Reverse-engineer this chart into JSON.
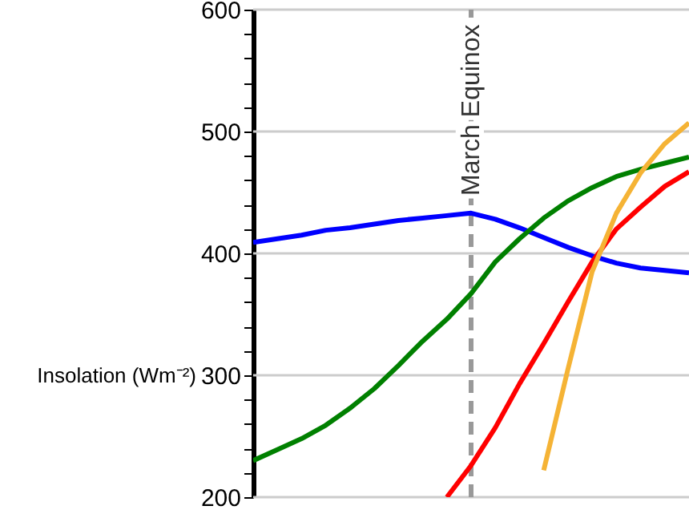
{
  "chart_data": {
    "type": "line",
    "ylabel": "Insolation (Wm⁻²)",
    "categories": [
      null,
      null,
      null,
      null,
      null,
      null,
      null,
      null,
      null,
      null,
      null,
      null,
      null,
      null,
      null,
      null,
      null,
      null,
      null
    ],
    "ylim": [
      200,
      600
    ],
    "yticks": [
      200,
      {
        "value": 220,
        "label": null
      },
      {
        "value": 240,
        "label": null
      },
      {
        "value": 260,
        "label": null
      },
      {
        "value": 280,
        "label": null
      },
      300,
      {
        "value": 320,
        "label": null
      },
      {
        "value": 340,
        "label": null
      },
      {
        "value": 360,
        "label": null
      },
      {
        "value": 380,
        "label": null
      },
      400,
      {
        "value": 420,
        "label": null
      },
      {
        "value": 440,
        "label": null
      },
      {
        "value": 460,
        "label": null
      },
      {
        "value": 480,
        "label": null
      },
      500,
      {
        "value": 520,
        "label": null
      },
      {
        "value": 540,
        "label": null
      },
      {
        "value": 560,
        "label": null
      },
      {
        "value": 580,
        "label": null
      },
      600
    ],
    "tick_labels": "y",
    "grid": "y",
    "line_style": "solid",
    "annotations": [
      "March Equinox"
    ],
    "series": [
      {
        "color": "#0000ff",
        "values": [
          409,
          412,
          415,
          419,
          421,
          424,
          427,
          429,
          431,
          433,
          428,
          421,
          413,
          405,
          398,
          392,
          388,
          386,
          384
        ]
      },
      {
        "color": "#008000",
        "values": [
          230,
          239,
          248,
          259,
          273,
          289,
          308,
          328,
          346,
          367,
          393,
          412,
          429,
          443,
          454,
          463,
          469,
          474,
          479
        ]
      },
      {
        "color": "#ff0000",
        "values": [
          null,
          null,
          null,
          null,
          null,
          null,
          null,
          null,
          200,
          226,
          257,
          293,
          326,
          360,
          393,
          420,
          438,
          455,
          467
        ]
      },
      {
        "color": "#f5b335",
        "values": [
          null,
          null,
          null,
          null,
          null,
          null,
          null,
          null,
          null,
          null,
          null,
          null,
          222,
          305,
          385,
          433,
          466,
          490,
          507
        ]
      }
    ]
  }
}
